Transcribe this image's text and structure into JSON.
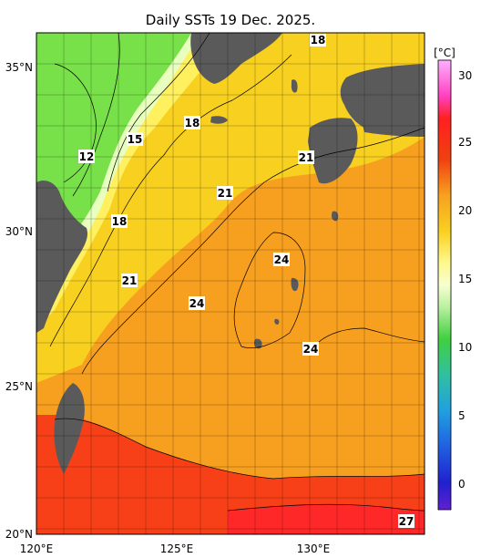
{
  "title": "Daily SSTs 19 Dec. 2025.",
  "unit_label": "[°C]",
  "lon_ticks": [
    "120°E",
    "125°E",
    "130°E"
  ],
  "lat_ticks": [
    "35°N",
    "30°N",
    "25°N",
    "20°N"
  ],
  "colorbar_ticks": [
    "30",
    "25",
    "20",
    "15",
    "10",
    "5",
    "0"
  ],
  "isotherm_labels": [
    "12",
    "15",
    "18",
    "18",
    "18",
    "21",
    "21",
    "21",
    "24",
    "24",
    "24",
    "27"
  ],
  "colors": {
    "land": "#5a5a5a",
    "warm": "#f02020",
    "orange": "#f7a020",
    "yellow": "#f5e020",
    "green": "#58d838"
  }
}
